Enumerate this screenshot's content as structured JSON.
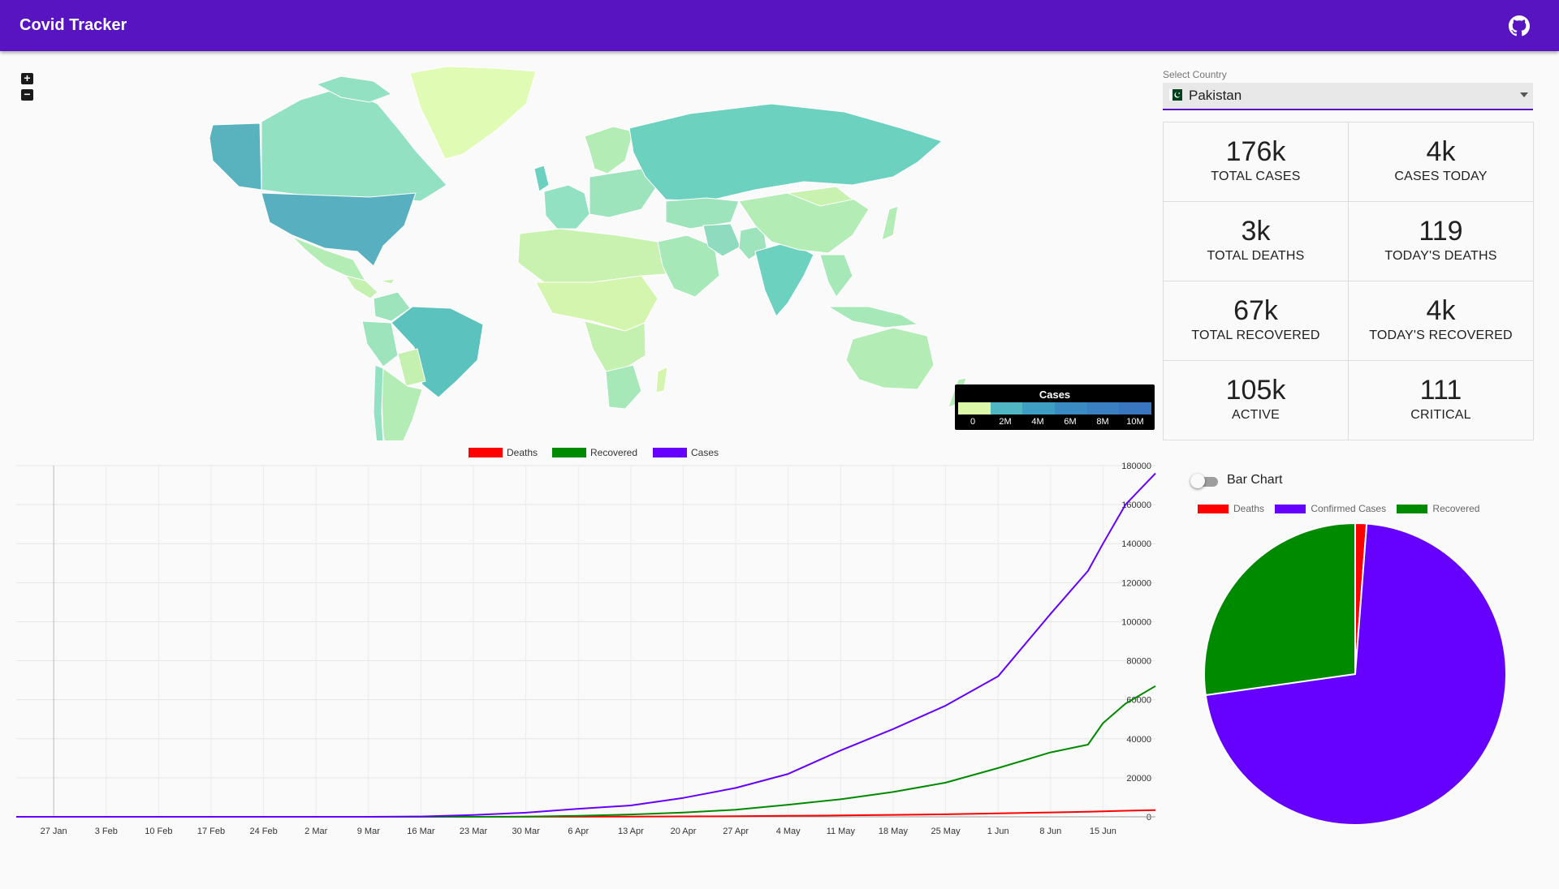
{
  "app": {
    "title": "Covid Tracker",
    "github_icon": "github-icon"
  },
  "map": {
    "zoom_in": "+",
    "zoom_out": "−",
    "legend": {
      "title": "Cases",
      "ticks": [
        "0",
        "2M",
        "4M",
        "6M",
        "8M",
        "10M"
      ],
      "colors": [
        "#dbf7a8",
        "#4fb6c2",
        "#3e9ec4",
        "#3a8bc3",
        "#3a7fc2",
        "#3a75c0"
      ]
    }
  },
  "country_select": {
    "label": "Select Country",
    "value": "Pakistan",
    "flag_icon": "pakistan-flag-icon"
  },
  "stats": [
    {
      "value": "176k",
      "label": "TOTAL CASES"
    },
    {
      "value": "4k",
      "label": "CASES TODAY"
    },
    {
      "value": "3k",
      "label": "TOTAL DEATHS"
    },
    {
      "value": "119",
      "label": "TODAY'S DEATHS"
    },
    {
      "value": "67k",
      "label": "TOTAL RECOVERED"
    },
    {
      "value": "4k",
      "label": "TODAY'S RECOVERED"
    },
    {
      "value": "105k",
      "label": "ACTIVE"
    },
    {
      "value": "111",
      "label": "CRITICAL"
    }
  ],
  "toggle": {
    "label": "Bar Chart",
    "on": false
  },
  "pie_legend": [
    {
      "name": "Deaths",
      "color": "#ff0000"
    },
    {
      "name": "Confirmed Cases",
      "color": "#6600ff"
    },
    {
      "name": "Recovered",
      "color": "#008a00"
    }
  ],
  "chart_data": [
    {
      "type": "line",
      "legend": [
        {
          "name": "Deaths",
          "color": "#ff0000"
        },
        {
          "name": "Recovered",
          "color": "#008a00"
        },
        {
          "name": "Cases",
          "color": "#6600ff"
        }
      ],
      "x_ticks": [
        "27 Jan",
        "3 Feb",
        "10 Feb",
        "17 Feb",
        "24 Feb",
        "2 Mar",
        "9 Mar",
        "16 Mar",
        "23 Mar",
        "30 Mar",
        "6 Apr",
        "13 Apr",
        "20 Apr",
        "27 Apr",
        "4 May",
        "11 May",
        "18 May",
        "25 May",
        "1 Jun",
        "8 Jun",
        "15 Jun"
      ],
      "y_ticks": [
        0,
        20000,
        40000,
        60000,
        80000,
        100000,
        120000,
        140000,
        160000,
        180000
      ],
      "ylim": [
        0,
        180000
      ],
      "y_axis_side": "right",
      "grid": true,
      "x": [
        "2020-01-22",
        "2020-03-09",
        "2020-03-16",
        "2020-03-23",
        "2020-03-30",
        "2020-04-06",
        "2020-04-13",
        "2020-04-20",
        "2020-04-27",
        "2020-05-04",
        "2020-05-11",
        "2020-05-18",
        "2020-05-25",
        "2020-06-01",
        "2020-06-08",
        "2020-06-13",
        "2020-06-15",
        "2020-06-18",
        "2020-06-22"
      ],
      "series": [
        {
          "name": "Cases",
          "values": [
            0,
            5,
            180,
            900,
            2100,
            4100,
            5800,
            9700,
            14800,
            22000,
            34000,
            45000,
            57000,
            72000,
            104000,
            126000,
            140000,
            160000,
            176000
          ]
        },
        {
          "name": "Recovered",
          "values": [
            0,
            0,
            0,
            10,
            100,
            500,
            1200,
            2200,
            3600,
            6200,
            9000,
            12700,
            17500,
            25000,
            33000,
            37000,
            48000,
            58000,
            67000
          ]
        },
        {
          "name": "Deaths",
          "values": [
            0,
            0,
            0,
            5,
            30,
            60,
            110,
            190,
            300,
            480,
            700,
            1000,
            1300,
            1750,
            2250,
            2600,
            2800,
            3100,
            3400
          ]
        }
      ]
    },
    {
      "type": "pie",
      "categories": [
        "Deaths",
        "Confirmed Cases",
        "Recovered"
      ],
      "values": [
        3,
        176,
        67
      ],
      "colors": [
        "#ff0000",
        "#6600ff",
        "#008a00"
      ]
    }
  ]
}
